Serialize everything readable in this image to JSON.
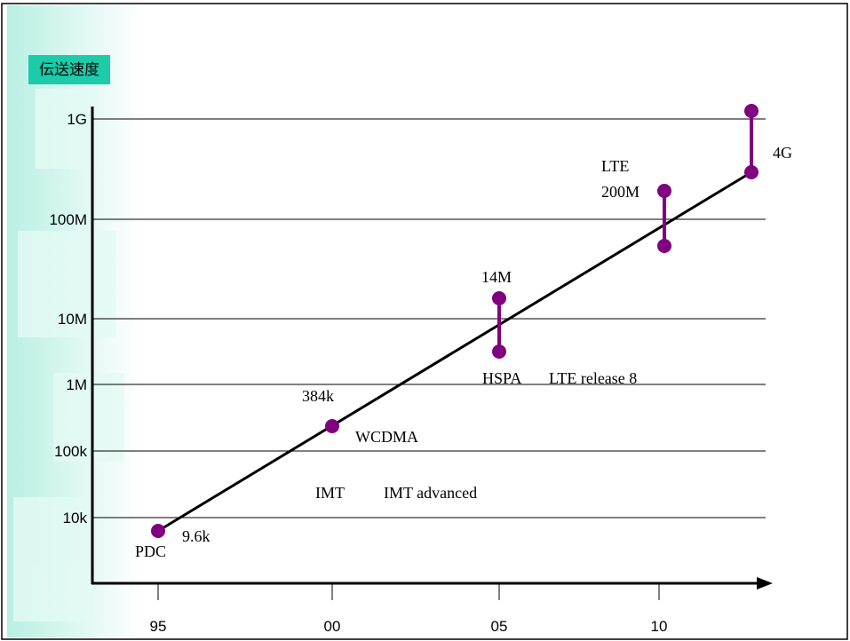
{
  "title": "伝送速度",
  "y_axis_labels": [
    "1G",
    "100M",
    "10M",
    "1M",
    "100k",
    "10k"
  ],
  "x_axis_labels": [
    "95",
    "00",
    "05",
    "10"
  ],
  "annotations": [
    "PDC",
    "9.6k",
    "384k",
    "WCDMA",
    "IMT",
    "IMT advanced",
    "14M",
    "HSPA",
    "LTE release 8",
    "LTE",
    "200M",
    "4G"
  ]
}
